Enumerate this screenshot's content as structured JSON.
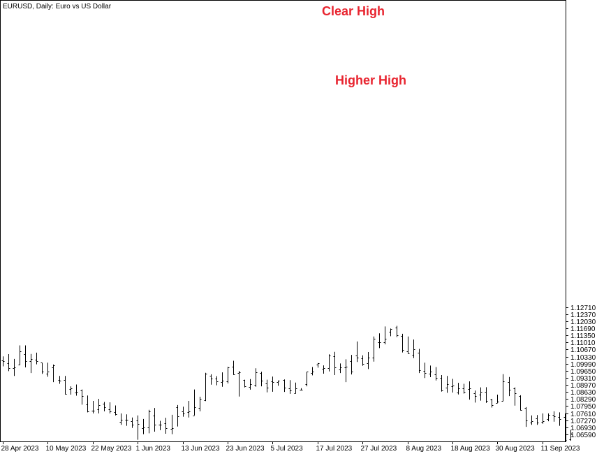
{
  "chart_data": {
    "type": "ohlc-bar",
    "title": "EURUSD, Daily:  Euro vs US Dollar",
    "symbol": "EURUSD",
    "timeframe": "Daily",
    "ylim": [
      1.0625,
      1.2745
    ],
    "y_ticks": [
      "1.12710",
      "1.12370",
      "1.12030",
      "1.11690",
      "1.11350",
      "1.11010",
      "1.10670",
      "1.10330",
      "1.09990",
      "1.09650",
      "1.09310",
      "1.08970",
      "1.08630",
      "1.08290",
      "1.07950",
      "1.07610",
      "1.07270",
      "1.06930",
      "1.06590"
    ],
    "x_labels": [
      "28 Apr 2023",
      "10 May 2023",
      "22 May 2023",
      "1 Jun 2023",
      "13 Jun 2023",
      "23 Jun 2023",
      "5 Jul 2023",
      "17 Jul 2023",
      "27 Jul 2023",
      "8 Aug 2023",
      "18 Aug 2023",
      "30 Aug 2023",
      "11 Sep 2023"
    ],
    "label_bar_index": [
      0,
      8,
      16,
      24,
      32,
      40,
      48,
      56,
      64,
      72,
      80,
      88,
      96
    ],
    "bar_color": "#000000",
    "grid": false,
    "annotations": [
      {
        "text": "Clear High",
        "color": "#e8242f"
      },
      {
        "text": "Higher High",
        "color": "#e8242f"
      }
    ],
    "bars": [
      {
        "h": 1.1034,
        "l": 1.0986,
        "o": 1.1014,
        "c": 1.1011
      },
      {
        "h": 1.1045,
        "l": 1.0963,
        "o": 1.1,
        "c": 1.0978
      },
      {
        "h": 1.1022,
        "l": 1.094,
        "o": 1.0978,
        "c": 1.098
      },
      {
        "h": 1.1087,
        "l": 1.0993,
        "o": 1.0995,
        "c": 1.1059
      },
      {
        "h": 1.1087,
        "l": 1.0981,
        "o": 1.1046,
        "c": 1.1012
      },
      {
        "h": 1.1046,
        "l": 1.0954,
        "o": 1.1012,
        "c": 1.1021
      },
      {
        "h": 1.1052,
        "l": 1.0996,
        "o": 1.1018,
        "c": 1.1011
      },
      {
        "h": 1.1003,
        "l": 1.095,
        "o": 1.1004,
        "c": 1.096
      },
      {
        "h": 1.1004,
        "l": 1.0936,
        "o": 1.095,
        "c": 1.096
      },
      {
        "h": 1.0995,
        "l": 1.091,
        "o": 1.098,
        "c": 1.099
      },
      {
        "h": 1.094,
        "l": 1.0902,
        "o": 1.092,
        "c": 1.0916
      },
      {
        "h": 1.094,
        "l": 1.0852,
        "o": 1.0919,
        "c": 1.0852
      },
      {
        "h": 1.089,
        "l": 1.085,
        "o": 1.0877,
        "c": 1.088
      },
      {
        "h": 1.0899,
        "l": 1.0845,
        "o": 1.086,
        "c": 1.0865
      },
      {
        "h": 1.0875,
        "l": 1.0802,
        "o": 1.087,
        "c": 1.0842
      },
      {
        "h": 1.0846,
        "l": 1.0765,
        "o": 1.0804,
        "c": 1.077
      },
      {
        "h": 1.082,
        "l": 1.076,
        "o": 1.0774,
        "c": 1.0772
      },
      {
        "h": 1.083,
        "l": 1.076,
        "o": 1.078,
        "c": 1.0799
      },
      {
        "h": 1.0815,
        "l": 1.077,
        "o": 1.0807,
        "c": 1.079
      },
      {
        "h": 1.0813,
        "l": 1.076,
        "o": 1.078,
        "c": 1.0771
      },
      {
        "h": 1.0798,
        "l": 1.075,
        "o": 1.0766,
        "c": 1.0755
      },
      {
        "h": 1.076,
        "l": 1.0705,
        "o": 1.072,
        "c": 1.073
      },
      {
        "h": 1.0755,
        "l": 1.07,
        "o": 1.0728,
        "c": 1.0728
      },
      {
        "h": 1.074,
        "l": 1.069,
        "o": 1.0723,
        "c": 1.0705
      },
      {
        "h": 1.075,
        "l": 1.0633,
        "o": 1.0725,
        "c": 1.071
      },
      {
        "h": 1.0733,
        "l": 1.066,
        "o": 1.069,
        "c": 1.0692
      },
      {
        "h": 1.0777,
        "l": 1.0664,
        "o": 1.0693,
        "c": 1.0768
      },
      {
        "h": 1.0786,
        "l": 1.0672,
        "o": 1.0748,
        "c": 1.0704
      },
      {
        "h": 1.0724,
        "l": 1.0679,
        "o": 1.0706,
        "c": 1.0706
      },
      {
        "h": 1.0739,
        "l": 1.0662,
        "o": 1.0712,
        "c": 1.0689
      },
      {
        "h": 1.0753,
        "l": 1.066,
        "o": 1.0686,
        "c": 1.069
      },
      {
        "h": 1.08,
        "l": 1.0697,
        "o": 1.079,
        "c": 1.0746
      },
      {
        "h": 1.0792,
        "l": 1.0744,
        "o": 1.0768,
        "c": 1.076
      },
      {
        "h": 1.082,
        "l": 1.074,
        "o": 1.0767,
        "c": 1.077
      },
      {
        "h": 1.0875,
        "l": 1.075,
        "o": 1.075,
        "c": 1.079
      },
      {
        "h": 1.084,
        "l": 1.077,
        "o": 1.0786,
        "c": 1.083
      },
      {
        "h": 1.0955,
        "l": 1.0819,
        "o": 1.0823,
        "c": 1.095
      },
      {
        "h": 1.0948,
        "l": 1.0898,
        "o": 1.0941,
        "c": 1.0927
      },
      {
        "h": 1.0939,
        "l": 1.0895,
        "o": 1.0928,
        "c": 1.0915
      },
      {
        "h": 1.0957,
        "l": 1.0888,
        "o": 1.0909,
        "c": 1.0917
      },
      {
        "h": 1.0984,
        "l": 1.0904,
        "o": 1.0914,
        "c": 1.0981
      },
      {
        "h": 1.1013,
        "l": 1.0945,
        "o": 1.0983,
        "c": 1.0948
      },
      {
        "h": 1.0964,
        "l": 1.0841,
        "o": 1.0955,
        "c": 1.0958
      },
      {
        "h": 1.0922,
        "l": 1.0885,
        "o": 1.0919,
        "c": 1.0891
      },
      {
        "h": 1.0925,
        "l": 1.0874,
        "o": 1.0888,
        "c": 1.0902
      },
      {
        "h": 1.0977,
        "l": 1.0888,
        "o": 1.0897,
        "c": 1.0958
      },
      {
        "h": 1.096,
        "l": 1.089,
        "o": 1.0955,
        "c": 1.0916
      },
      {
        "h": 1.0922,
        "l": 1.0861,
        "o": 1.0905,
        "c": 1.0884
      },
      {
        "h": 1.0937,
        "l": 1.0864,
        "o": 1.0915,
        "c": 1.0911
      },
      {
        "h": 1.0918,
        "l": 1.0893,
        "o": 1.0912,
        "c": 1.0916
      },
      {
        "h": 1.0923,
        "l": 1.0863,
        "o": 1.092,
        "c": 1.0884
      },
      {
        "h": 1.092,
        "l": 1.0854,
        "o": 1.088,
        "c": 1.0869
      },
      {
        "h": 1.0908,
        "l": 1.0856,
        "o": 1.0858,
        "c": 1.088
      },
      {
        "h": 1.0881,
        "l": 1.0873,
        "o": 1.0873,
        "c": 1.0875
      },
      {
        "h": 1.096,
        "l": 1.089,
        "o": 1.09,
        "c": 1.096
      },
      {
        "h": 1.0983,
        "l": 1.0943,
        "o": 1.0953,
        "c": 1.0961
      },
      {
        "h": 1.1002,
        "l": 1.098,
        "o": 1.0995,
        "c": 1.1
      },
      {
        "h": 1.0991,
        "l": 1.0951,
        "o": 1.0975,
        "c": 1.0979
      },
      {
        "h": 1.1044,
        "l": 1.0962,
        "o": 1.0979,
        "c": 1.1037
      },
      {
        "h": 1.1056,
        "l": 1.0944,
        "o": 1.1036,
        "c": 1.098
      },
      {
        "h": 1.1,
        "l": 1.0954,
        "o": 1.097,
        "c": 1.098
      },
      {
        "h": 1.102,
        "l": 1.091,
        "o": 1.098,
        "c": 1.0985
      },
      {
        "h": 1.1041,
        "l": 1.0947,
        "o": 1.101,
        "c": 1.0962
      },
      {
        "h": 1.1106,
        "l": 1.1007,
        "o": 1.1037,
        "c": 1.1027
      },
      {
        "h": 1.1039,
        "l": 1.0989,
        "o": 1.1026,
        "c": 1.0998
      },
      {
        "h": 1.1055,
        "l": 1.0973,
        "o": 1.1002,
        "c": 1.1028
      },
      {
        "h": 1.113,
        "l": 1.1009,
        "o": 1.1028,
        "c": 1.112
      },
      {
        "h": 1.1145,
        "l": 1.1074,
        "o": 1.1102,
        "c": 1.1101
      },
      {
        "h": 1.1178,
        "l": 1.1092,
        "o": 1.1103,
        "c": 1.112
      },
      {
        "h": 1.1168,
        "l": 1.1131,
        "o": 1.1154,
        "c": 1.1166
      },
      {
        "h": 1.1181,
        "l": 1.1127,
        "o": 1.1171,
        "c": 1.1137
      },
      {
        "h": 1.1143,
        "l": 1.1053,
        "o": 1.1131,
        "c": 1.1064
      },
      {
        "h": 1.113,
        "l": 1.1048,
        "o": 1.106,
        "c": 1.105
      },
      {
        "h": 1.1115,
        "l": 1.1026,
        "o": 1.1042,
        "c": 1.1068
      },
      {
        "h": 1.107,
        "l": 1.0954,
        "o": 1.1053,
        "c": 1.0969
      },
      {
        "h": 1.1004,
        "l": 1.093,
        "o": 1.0964,
        "c": 1.0953
      },
      {
        "h": 1.099,
        "l": 1.0934,
        "o": 1.095,
        "c": 1.0962
      },
      {
        "h": 1.0983,
        "l": 1.0918,
        "o": 1.0948,
        "c": 1.093
      },
      {
        "h": 1.0944,
        "l": 1.0865,
        "o": 1.093,
        "c": 1.087
      },
      {
        "h": 1.094,
        "l": 1.0859,
        "o": 1.0885,
        "c": 1.0899
      },
      {
        "h": 1.0926,
        "l": 1.086,
        "o": 1.0889,
        "c": 1.0893
      },
      {
        "h": 1.0907,
        "l": 1.0851,
        "o": 1.0861,
        "c": 1.0881
      },
      {
        "h": 1.0902,
        "l": 1.0855,
        "o": 1.0879,
        "c": 1.0865
      },
      {
        "h": 1.0914,
        "l": 1.0826,
        "o": 1.0876,
        "c": 1.088
      },
      {
        "h": 1.087,
        "l": 1.0812,
        "o": 1.0858,
        "c": 1.0842
      },
      {
        "h": 1.0885,
        "l": 1.0821,
        "o": 1.0849,
        "c": 1.0862
      },
      {
        "h": 1.0886,
        "l": 1.081,
        "o": 1.0863,
        "c": 1.082
      },
      {
        "h": 1.083,
        "l": 1.0788,
        "o": 1.0827,
        "c": 1.08
      },
      {
        "h": 1.085,
        "l": 1.081,
        "o": 1.0811,
        "c": 1.0818
      },
      {
        "h": 1.0949,
        "l": 1.0819,
        "o": 1.082,
        "c": 1.0914
      },
      {
        "h": 1.0935,
        "l": 1.0843,
        "o": 1.0912,
        "c": 1.0875
      },
      {
        "h": 1.0885,
        "l": 1.0797,
        "o": 1.0879,
        "c": 1.0858
      },
      {
        "h": 1.0847,
        "l": 1.0774,
        "o": 1.0842,
        "c": 1.0777
      },
      {
        "h": 1.079,
        "l": 1.0695,
        "o": 1.0785,
        "c": 1.0725
      },
      {
        "h": 1.075,
        "l": 1.0705,
        "o": 1.0716,
        "c": 1.0723
      },
      {
        "h": 1.0752,
        "l": 1.0705,
        "o": 1.0735,
        "c": 1.0715
      },
      {
        "h": 1.076,
        "l": 1.071,
        "o": 1.072,
        "c": 1.0724
      },
      {
        "h": 1.076,
        "l": 1.0722,
        "o": 1.0732,
        "c": 1.0754
      },
      {
        "h": 1.077,
        "l": 1.072,
        "o": 1.0754,
        "c": 1.0746
      },
      {
        "h": 1.0765,
        "l": 1.07,
        "o": 1.0743,
        "c": 1.0731
      },
      {
        "h": 1.076,
        "l": 1.0625,
        "o": 1.0742,
        "c": 1.0633
      },
      {
        "h": 1.068,
        "l": 1.0628,
        "o": 1.0635,
        "c": 1.066
      }
    ]
  }
}
